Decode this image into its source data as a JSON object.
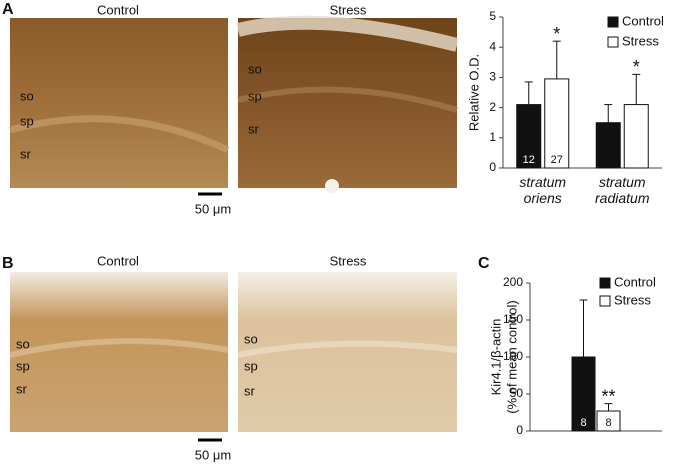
{
  "figure": {
    "panels": [
      {
        "label": "A",
        "images": [
          {
            "title": "Control",
            "layers": [
              "so",
              "sp",
              "sr"
            ]
          },
          {
            "title": "Stress",
            "layers": [
              "so",
              "sp",
              "sr"
            ]
          }
        ],
        "scale_bar": "50 μm"
      },
      {
        "label": "B",
        "images": [
          {
            "title": "Control",
            "layers": [
              "so",
              "sp",
              "sr"
            ]
          },
          {
            "title": "Stress",
            "layers": [
              "so",
              "sp",
              "sr"
            ]
          }
        ],
        "scale_bar": "50 μm"
      },
      {
        "label": "C"
      }
    ]
  },
  "chart_data": [
    {
      "type": "bar",
      "ylabel": "Relative O.D.",
      "categories": [
        "stratum oriens",
        "stratum radiatum"
      ],
      "ylim": [
        0,
        5
      ],
      "yticks": [
        0,
        1,
        2,
        3,
        4,
        5
      ],
      "legend": "top-right",
      "series": [
        {
          "name": "Control",
          "color": "#111111",
          "values": [
            2.1,
            1.5
          ],
          "errors": [
            0.75,
            0.6
          ],
          "bar_labels": [
            "12",
            null
          ],
          "significance": [
            null,
            null
          ]
        },
        {
          "name": "Stress",
          "color": "#ffffff",
          "values": [
            2.95,
            2.1
          ],
          "errors": [
            1.25,
            1.0
          ],
          "bar_labels": [
            "27",
            null
          ],
          "significance": [
            "*",
            "*"
          ]
        }
      ]
    },
    {
      "type": "bar",
      "ylabel": [
        "Kir4.1/β-actin",
        "(% of mean control)"
      ],
      "categories": [
        null
      ],
      "ylim": [
        0,
        200
      ],
      "yticks": [
        0,
        50,
        100,
        150,
        200
      ],
      "legend": "top-right",
      "series": [
        {
          "name": "Control",
          "color": "#111111",
          "values": [
            100
          ],
          "errors": [
            77
          ],
          "bar_labels": [
            "8"
          ],
          "significance": [
            null
          ]
        },
        {
          "name": "Stress",
          "color": "#ffffff",
          "values": [
            27
          ],
          "errors": [
            10
          ],
          "bar_labels": [
            "8"
          ],
          "significance": [
            "**"
          ]
        }
      ]
    }
  ]
}
